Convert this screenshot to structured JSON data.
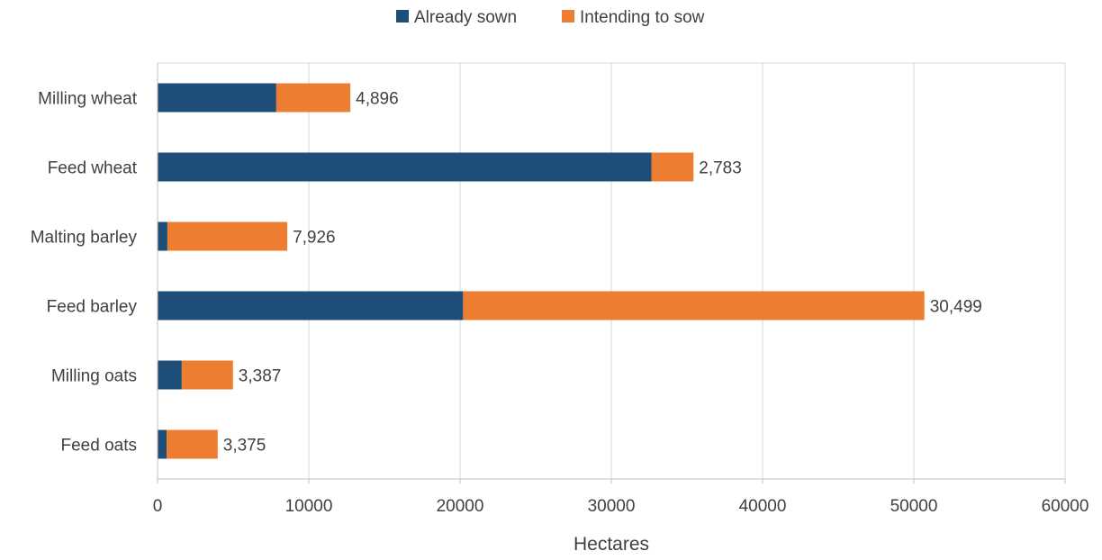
{
  "chart_data": {
    "type": "bar",
    "orientation": "horizontal",
    "stacked": true,
    "title": "",
    "xlabel": "Hectares",
    "ylabel": "",
    "xlim": [
      0,
      60000
    ],
    "xticks": [
      0,
      10000,
      20000,
      30000,
      40000,
      50000,
      60000
    ],
    "grid": true,
    "legend_position": "top",
    "categories": [
      "Milling wheat",
      "Feed wheat",
      "Malting barley",
      "Feed barley",
      "Milling oats",
      "Feed oats"
    ],
    "series": [
      {
        "name": "Already sown",
        "color": "#1f4e79",
        "values": [
          7850,
          32650,
          650,
          20200,
          1600,
          600
        ]
      },
      {
        "name": "Intending to sow",
        "color": "#ed7d31",
        "values": [
          4896,
          2783,
          7926,
          30499,
          3387,
          3375
        ]
      }
    ],
    "data_labels": [
      "4,896",
      "2,783",
      "7,926",
      "30,499",
      "3,387",
      "3,375"
    ]
  }
}
